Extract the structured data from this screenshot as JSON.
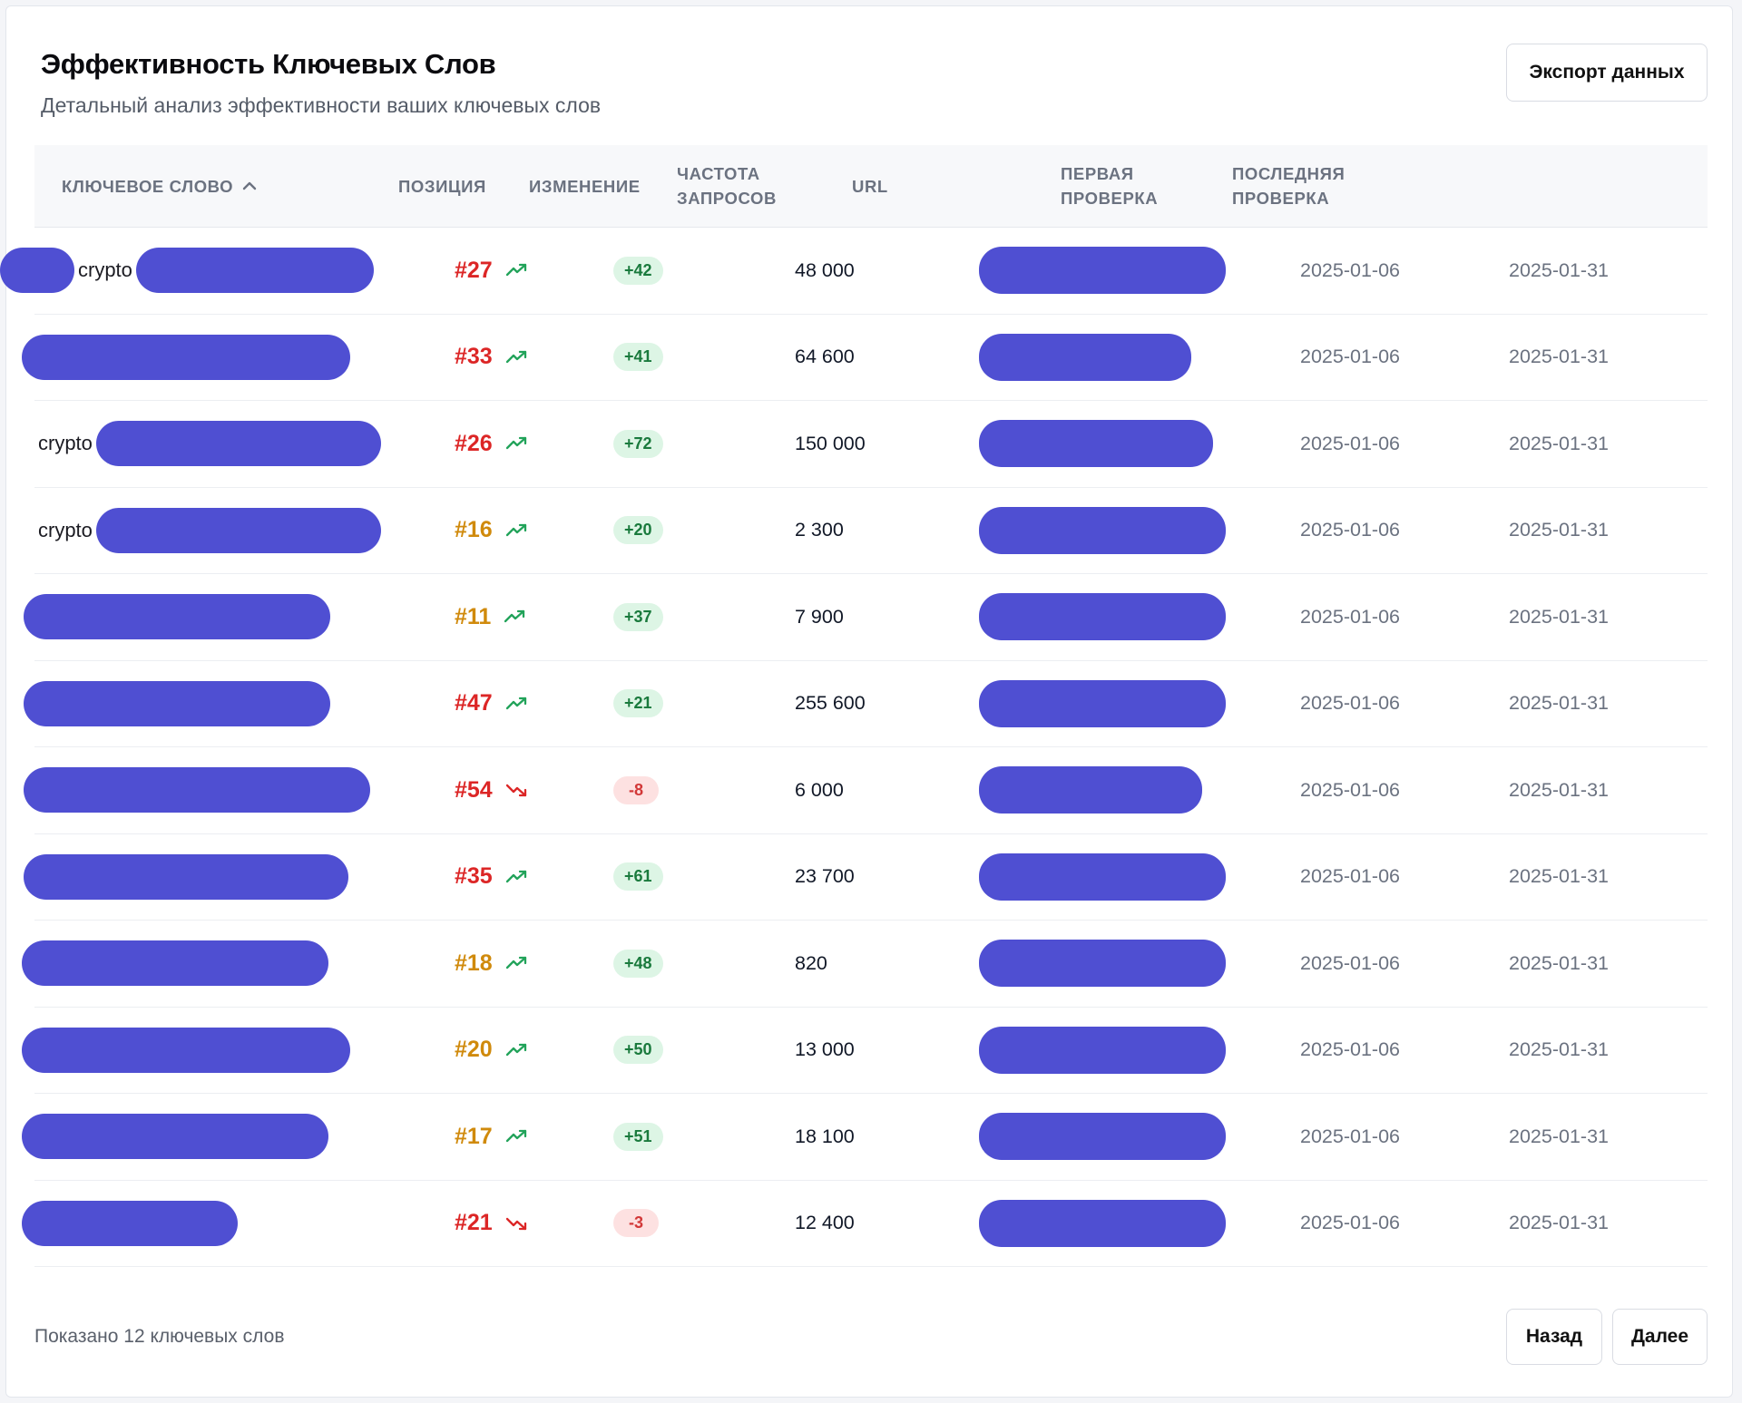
{
  "header": {
    "title": "Эффективность Ключевых Слов",
    "subtitle": "Детальный анализ эффективности ваших ключевых слов",
    "export_label": "Экспорт данных"
  },
  "table": {
    "columns": {
      "keyword": "КЛЮЧЕВОЕ СЛОВО",
      "position": "ПОЗИЦИЯ",
      "change": "ИЗМЕНЕНИЕ",
      "frequency_line1": "ЧАСТОТА",
      "frequency_line2": "ЗАПРОСОВ",
      "url": "URL",
      "first_line1": "ПЕРВАЯ",
      "first_line2": "ПРОВЕРКА",
      "last_line1": "ПОСЛЕДНЯЯ",
      "last_line2": "ПРОВЕРКА"
    },
    "sort_icon": "chevron-up-icon",
    "rows": [
      {
        "keyword_text": "crypto",
        "position": "#27",
        "trend": "up",
        "change": "+42",
        "frequency": "48 000",
        "first_check": "2025-01-06",
        "last_check": "2025-01-31"
      },
      {
        "keyword_text": "",
        "position": "#33",
        "trend": "up",
        "change": "+41",
        "frequency": "64 600",
        "first_check": "2025-01-06",
        "last_check": "2025-01-31"
      },
      {
        "keyword_text": "crypto",
        "position": "#26",
        "trend": "up",
        "change": "+72",
        "frequency": "150 000",
        "first_check": "2025-01-06",
        "last_check": "2025-01-31"
      },
      {
        "keyword_text": "crypto",
        "position": "#16",
        "trend": "up",
        "change": "+20",
        "frequency": "2 300",
        "first_check": "2025-01-06",
        "last_check": "2025-01-31"
      },
      {
        "keyword_text": "",
        "position": "#11",
        "trend": "up",
        "change": "+37",
        "frequency": "7 900",
        "first_check": "2025-01-06",
        "last_check": "2025-01-31"
      },
      {
        "keyword_text": "",
        "position": "#47",
        "trend": "up",
        "change": "+21",
        "frequency": "255 600",
        "first_check": "2025-01-06",
        "last_check": "2025-01-31"
      },
      {
        "keyword_text": "",
        "position": "#54",
        "trend": "down",
        "change": "-8",
        "frequency": "6 000",
        "first_check": "2025-01-06",
        "last_check": "2025-01-31"
      },
      {
        "keyword_text": "",
        "position": "#35",
        "trend": "up",
        "change": "+61",
        "frequency": "23 700",
        "first_check": "2025-01-06",
        "last_check": "2025-01-31"
      },
      {
        "keyword_text": "",
        "position": "#18",
        "trend": "up",
        "change": "+48",
        "frequency": "820",
        "first_check": "2025-01-06",
        "last_check": "2025-01-31"
      },
      {
        "keyword_text": "",
        "position": "#20",
        "trend": "up",
        "change": "+50",
        "frequency": "13 000",
        "first_check": "2025-01-06",
        "last_check": "2025-01-31"
      },
      {
        "keyword_text": "",
        "position": "#17",
        "trend": "up",
        "change": "+51",
        "frequency": "18 100",
        "first_check": "2025-01-06",
        "last_check": "2025-01-31"
      },
      {
        "keyword_text": "",
        "position": "#21",
        "trend": "down",
        "change": "-3",
        "frequency": "12 400",
        "first_check": "2025-01-06",
        "last_check": "2025-01-31"
      }
    ]
  },
  "footer": {
    "shown_text": "Показано 12 ключевых слов",
    "prev_label": "Назад",
    "next_label": "Далее"
  },
  "colors": {
    "redaction": "#4f4fd2",
    "position_red": "#dc2626",
    "position_amber": "#d08a0c",
    "trend_up": "#22a35a",
    "trend_down": "#dc2626"
  }
}
